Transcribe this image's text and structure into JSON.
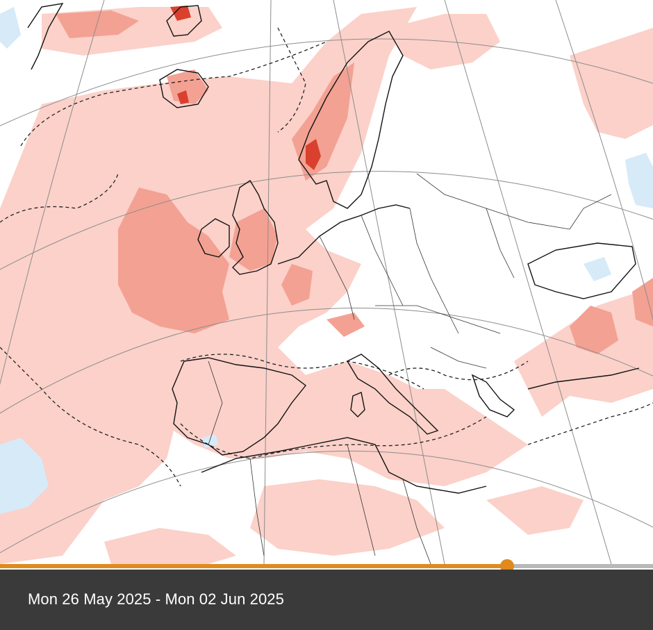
{
  "map": {
    "name": "Europe weekly temperature anomaly map",
    "colors": {
      "warm_light": "#fbd1c9",
      "warm_mid": "#f3a193",
      "warm_strong": "#d9412e",
      "cool_light": "#d6eaf8",
      "coast": "#111111",
      "grid": "#8c8c8c"
    }
  },
  "timeline": {
    "progress": 0.777
  },
  "period_label": "Mon 26 May 2025 - Mon 02 Jun 2025"
}
